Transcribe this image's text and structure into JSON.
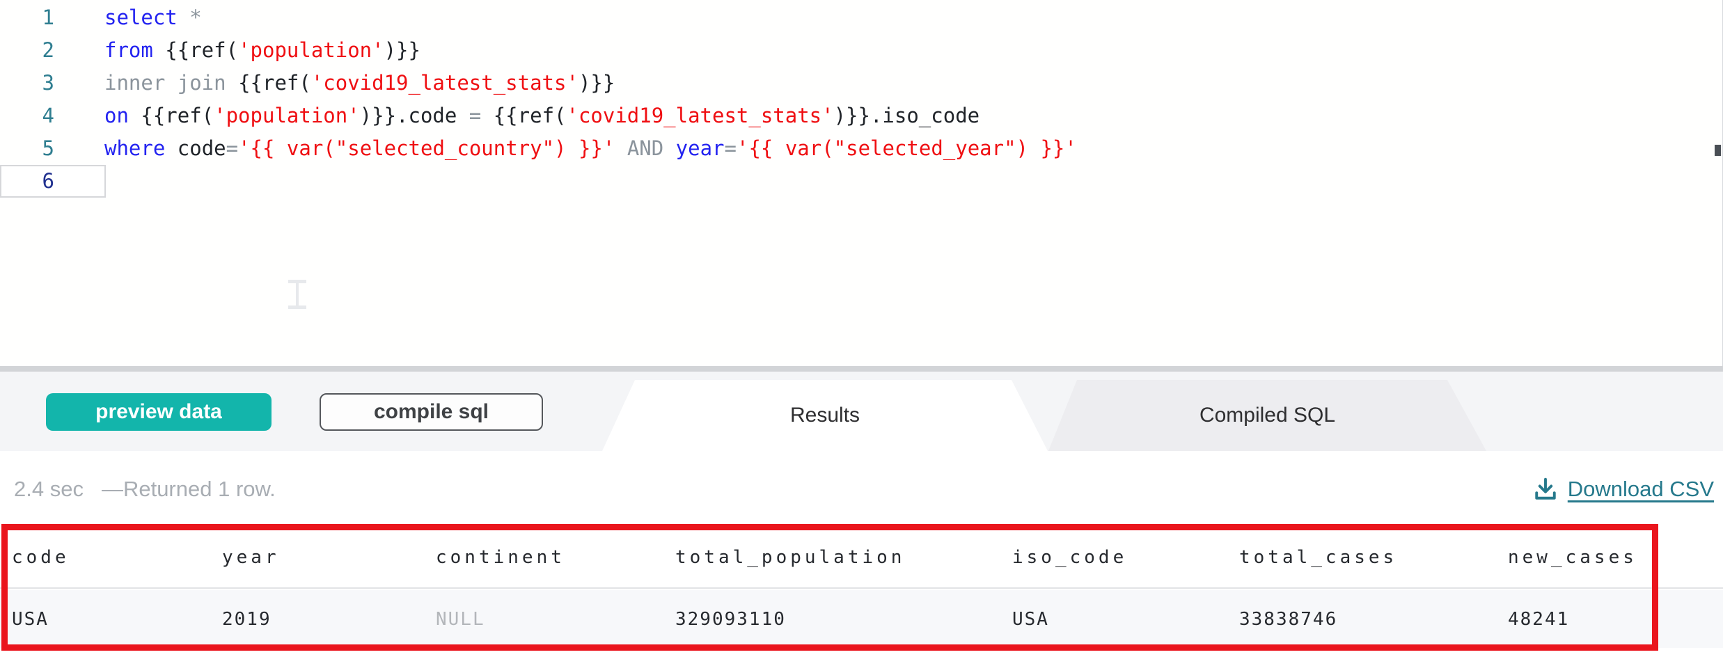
{
  "colors": {
    "accent_teal": "#13b5ab",
    "link_teal": "#26798c",
    "annotation_red": "#ea151d",
    "keyword_blue": "#2323f0",
    "string_red": "#ef0f12",
    "muted_gray": "#8b949c",
    "line_number_teal": "#2f7e90",
    "active_line_number_navy": "#20308f"
  },
  "editor": {
    "lines": [
      {
        "n": "1",
        "active": false,
        "segs": [
          [
            "k",
            "select"
          ],
          [
            "p",
            " "
          ],
          [
            "m",
            "*"
          ]
        ]
      },
      {
        "n": "2",
        "active": false,
        "segs": [
          [
            "k",
            "from"
          ],
          [
            "p",
            " {{ref("
          ],
          [
            "s",
            "'population'"
          ],
          [
            "p",
            ")}}"
          ]
        ]
      },
      {
        "n": "3",
        "active": false,
        "segs": [
          [
            "m",
            "inner join"
          ],
          [
            "p",
            " {{ref("
          ],
          [
            "s",
            "'covid19_latest_stats'"
          ],
          [
            "p",
            ")}}"
          ]
        ]
      },
      {
        "n": "4",
        "active": false,
        "segs": [
          [
            "k",
            "on"
          ],
          [
            "p",
            " {{ref("
          ],
          [
            "s",
            "'population'"
          ],
          [
            "p",
            ")}}.code "
          ],
          [
            "m",
            "="
          ],
          [
            "p",
            " {{ref("
          ],
          [
            "s",
            "'covid19_latest_stats'"
          ],
          [
            "p",
            ")}}.iso_code"
          ]
        ]
      },
      {
        "n": "5",
        "active": false,
        "segs": [
          [
            "k",
            "where"
          ],
          [
            "p",
            " code"
          ],
          [
            "m",
            "="
          ],
          [
            "s",
            "'{{ var(\"selected_country\") }}'"
          ],
          [
            "p",
            " "
          ],
          [
            "m",
            "AND"
          ],
          [
            "p",
            " "
          ],
          [
            "k",
            "year"
          ],
          [
            "m",
            "="
          ],
          [
            "s",
            "'{{ var(\"selected_year\") }}'"
          ]
        ]
      },
      {
        "n": "6",
        "active": true,
        "segs": []
      }
    ]
  },
  "toolbar": {
    "preview_label": "preview data",
    "compile_label": "compile sql"
  },
  "tabs": [
    {
      "label": "Results",
      "active": true
    },
    {
      "label": "Compiled SQL",
      "active": false
    }
  ],
  "status": {
    "duration": "2.4 sec",
    "row_info": "—Returned 1 row.",
    "download_label": "Download CSV"
  },
  "results_table": {
    "columns": [
      "code",
      "year",
      "continent",
      "total_population",
      "iso_code",
      "total_cases",
      "new_cases"
    ],
    "rows": [
      [
        "USA",
        "2019",
        "NULL",
        "329093110",
        "USA",
        "33838746",
        "48241"
      ]
    ]
  }
}
